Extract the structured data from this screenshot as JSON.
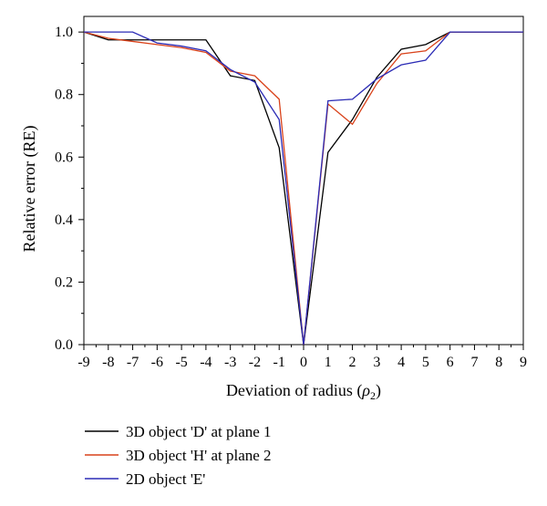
{
  "chart_data": {
    "type": "line",
    "xlabel_prefix": "Deviation of radius (",
    "xlabel_symbol": "ρ",
    "xlabel_subscript": "2",
    "xlabel_suffix": ")",
    "ylabel": "Relative error (RE)",
    "xlim": [
      -9,
      9
    ],
    "ylim": [
      0.0,
      1.05
    ],
    "x_ticks": [
      -9,
      -8,
      -7,
      -6,
      -5,
      -4,
      -3,
      -2,
      -1,
      0,
      1,
      2,
      3,
      4,
      5,
      6,
      7,
      8,
      9
    ],
    "x_tick_labels": [
      "-9",
      "-8",
      "-7",
      "-6",
      "-5",
      "-4",
      "-3",
      "-2",
      "-1",
      "0",
      "1",
      "2",
      "3",
      "4",
      "5",
      "6",
      "7",
      "8",
      "9"
    ],
    "y_ticks": [
      0.0,
      0.2,
      0.4,
      0.6,
      0.8,
      1.0
    ],
    "y_tick_labels": [
      "0.0",
      "0.2",
      "0.4",
      "0.6",
      "0.8",
      "1.0"
    ],
    "grid": false,
    "legend_position": "bottom-left",
    "series": [
      {
        "name": "3D object 'D' at plane 1",
        "color": "#000000",
        "x": [
          -9,
          -8,
          -7,
          -6,
          -5,
          -4,
          -3,
          -2,
          -1,
          0,
          1,
          2,
          3,
          4,
          5,
          6,
          7,
          8,
          9
        ],
        "y": [
          1.0,
          0.975,
          0.975,
          0.975,
          0.975,
          0.975,
          0.86,
          0.845,
          0.63,
          0.0,
          0.615,
          0.72,
          0.855,
          0.945,
          0.96,
          1.0,
          1.0,
          1.0,
          1.0
        ]
      },
      {
        "name": "3D object 'H' at plane 2",
        "color": "#d9421a",
        "x": [
          -9,
          -8,
          -7,
          -6,
          -5,
          -4,
          -3,
          -2,
          -1,
          0,
          1,
          2,
          3,
          4,
          5,
          6,
          7,
          8,
          9
        ],
        "y": [
          1.0,
          0.98,
          0.97,
          0.96,
          0.95,
          0.935,
          0.875,
          0.86,
          0.785,
          0.0,
          0.77,
          0.705,
          0.835,
          0.93,
          0.94,
          1.0,
          1.0,
          1.0,
          1.0
        ]
      },
      {
        "name": "2D object 'E'",
        "color": "#2b2bb5",
        "x": [
          -9,
          -8,
          -7,
          -6,
          -5,
          -4,
          -3,
          -2,
          -1,
          0,
          1,
          2,
          3,
          4,
          5,
          6,
          7,
          8,
          9
        ],
        "y": [
          1.0,
          1.0,
          1.0,
          0.965,
          0.955,
          0.94,
          0.88,
          0.84,
          0.72,
          0.0,
          0.78,
          0.785,
          0.85,
          0.895,
          0.91,
          1.0,
          1.0,
          1.0,
          1.0
        ]
      }
    ]
  }
}
